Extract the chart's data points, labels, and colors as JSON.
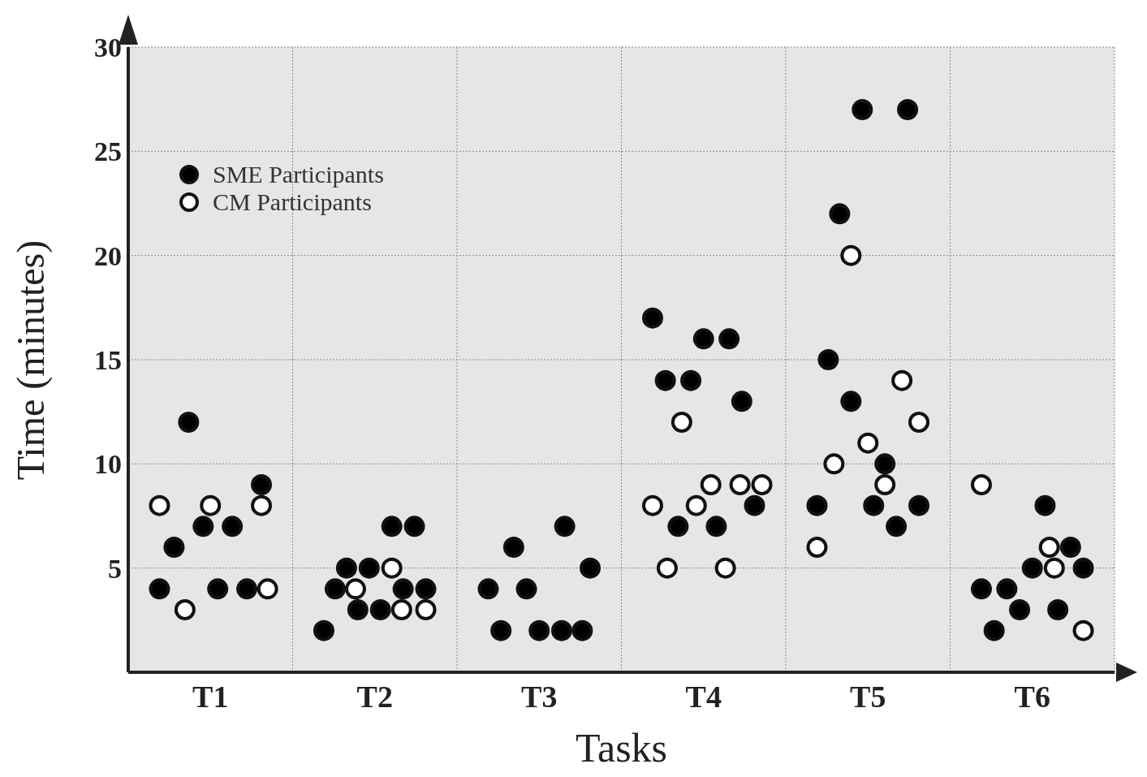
{
  "chart_data": {
    "type": "scatter",
    "xlabel": "Tasks",
    "ylabel": "Time (minutes)",
    "categories": [
      "T1",
      "T2",
      "T3",
      "T4",
      "T5",
      "T6"
    ],
    "ylim": [
      0,
      30
    ],
    "yticks": [
      5,
      10,
      15,
      20,
      25,
      30
    ],
    "grid": true,
    "legend": "top left",
    "marker": "circle",
    "series": [
      {
        "name": "SME Participants",
        "color": "#000000",
        "x": [
          "T1",
          "T1",
          "T1",
          "T1",
          "T1",
          "T1",
          "T1",
          "T1",
          "T2",
          "T2",
          "T2",
          "T2",
          "T2",
          "T2",
          "T2",
          "T2",
          "T2",
          "T2",
          "T3",
          "T3",
          "T3",
          "T3",
          "T3",
          "T3",
          "T3",
          "T3",
          "T3",
          "T4",
          "T4",
          "T4",
          "T4",
          "T4",
          "T4",
          "T4",
          "T4",
          "T4",
          "T5",
          "T5",
          "T5",
          "T5",
          "T5",
          "T5",
          "T5",
          "T5",
          "T5",
          "T5",
          "T6",
          "T6",
          "T6",
          "T6",
          "T6",
          "T6",
          "T6",
          "T6",
          "T6"
        ],
        "values": [
          4,
          6,
          12,
          7,
          4,
          7,
          4,
          9,
          2,
          4,
          5,
          3,
          5,
          3,
          7,
          4,
          7,
          4,
          4,
          2,
          6,
          4,
          2,
          2,
          7,
          2,
          5,
          17,
          14,
          7,
          14,
          16,
          7,
          16,
          13,
          8,
          8,
          15,
          22,
          13,
          27,
          8,
          10,
          7,
          27,
          8,
          4,
          2,
          4,
          3,
          5,
          8,
          3,
          6,
          5
        ]
      },
      {
        "name": "CM Participants",
        "color": "#ffffff",
        "x": [
          "T1",
          "T1",
          "T1",
          "T1",
          "T1",
          "T2",
          "T2",
          "T2",
          "T2",
          "T4",
          "T4",
          "T4",
          "T4",
          "T4",
          "T4",
          "T4",
          "T4",
          "T5",
          "T5",
          "T5",
          "T5",
          "T5",
          "T5",
          "T5",
          "T6",
          "T6",
          "T6",
          "T6"
        ],
        "values": [
          8,
          3,
          8,
          4,
          8,
          4,
          3,
          5,
          3,
          8,
          5,
          12,
          8,
          9,
          5,
          9,
          9,
          6,
          10,
          20,
          11,
          9,
          14,
          12,
          9,
          5,
          6,
          2
        ]
      }
    ]
  }
}
